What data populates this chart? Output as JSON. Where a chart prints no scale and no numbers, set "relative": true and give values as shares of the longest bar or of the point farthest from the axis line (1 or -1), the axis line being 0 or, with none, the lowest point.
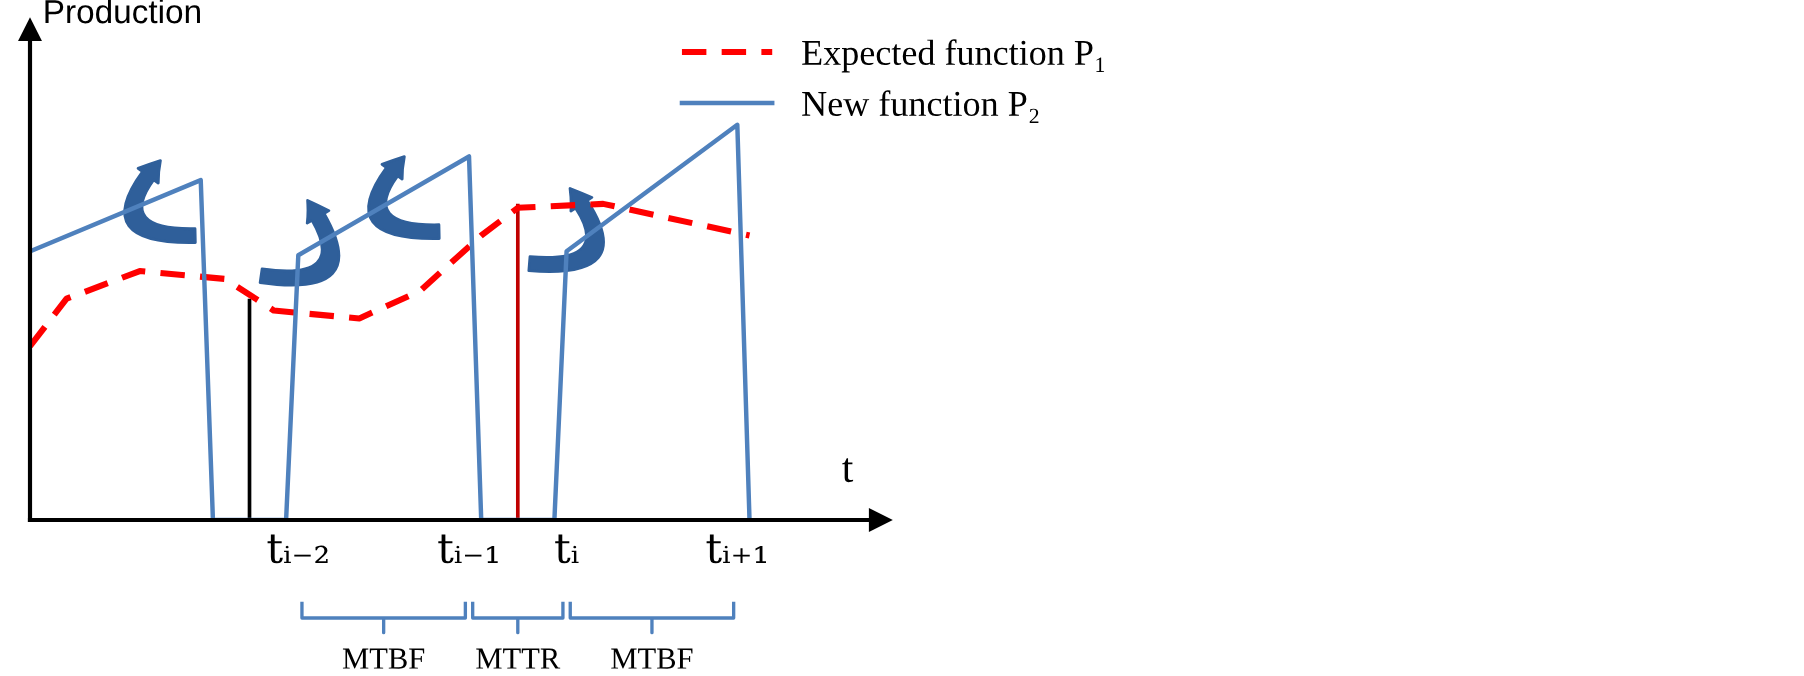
{
  "chart_data": {
    "type": "line",
    "relative": true,
    "ylabel": "Production",
    "xlabel": "t",
    "categories": [
      null,
      null,
      null,
      null,
      null,
      null,
      null,
      null,
      null,
      null,
      null,
      null,
      null,
      null,
      null,
      null,
      null,
      null,
      null,
      null,
      null,
      null,
      "tᵢ₋₂",
      null,
      null,
      null,
      null,
      null,
      null,
      null,
      null,
      null,
      null,
      null,
      null,
      null,
      "tᵢ₋₁",
      null,
      null,
      null,
      null,
      null,
      null,
      null,
      "tᵢ",
      null,
      null,
      null,
      null,
      null,
      null,
      null,
      null,
      null,
      null,
      null,
      null,
      null,
      "tᵢ₊₁",
      null,
      null,
      null,
      null,
      null,
      null,
      null,
      null,
      null,
      null,
      null
    ],
    "series": [
      {
        "name": "Expected function P₁",
        "color": "#ff0000",
        "line_style": "dashed",
        "values": [
          0.44,
          null,
          null,
          0.56,
          null,
          null,
          null,
          null,
          null,
          0.63,
          null,
          null,
          null,
          null,
          null,
          null,
          0.61,
          null,
          null,
          null,
          0.53,
          null,
          null,
          null,
          null,
          null,
          null,
          0.51,
          null,
          null,
          null,
          null,
          0.58,
          null,
          null,
          null,
          null,
          0.72,
          null,
          null,
          0.79,
          null,
          null,
          null,
          null,
          null,
          null,
          0.8,
          null,
          null,
          null,
          null,
          null,
          null,
          null,
          null,
          null,
          null,
          null,
          0.72,
          null,
          null,
          null,
          null,
          null,
          null,
          null,
          null,
          null,
          null
        ]
      },
      {
        "name": "New function P₂",
        "color": "#4f81bd",
        "line_style": "solid",
        "values": [
          0.68,
          null,
          null,
          null,
          null,
          null,
          null,
          null,
          null,
          null,
          null,
          null,
          null,
          null,
          0.86,
          0,
          null,
          null,
          null,
          null,
          null,
          0,
          0.67,
          null,
          null,
          null,
          null,
          null,
          null,
          null,
          null,
          null,
          null,
          null,
          null,
          null,
          0.92,
          0,
          null,
          null,
          null,
          null,
          null,
          0,
          0.68,
          null,
          null,
          null,
          null,
          null,
          null,
          null,
          null,
          null,
          null,
          null,
          null,
          null,
          1.0,
          0,
          null,
          null,
          null,
          null,
          null,
          null,
          null,
          null,
          null,
          null
        ]
      },
      {
        "type": "bar",
        "color": "#000000",
        "values": [
          null,
          null,
          null,
          null,
          null,
          null,
          null,
          null,
          null,
          null,
          null,
          null,
          null,
          null,
          null,
          null,
          null,
          null,
          0.56,
          null,
          null,
          null,
          null,
          null,
          null,
          null,
          null,
          null,
          null,
          null,
          null,
          null,
          null,
          null,
          null,
          null,
          null,
          null,
          null,
          null,
          null,
          null,
          null,
          null,
          null,
          null,
          null,
          null,
          null,
          null,
          null,
          null,
          null,
          null,
          null,
          null,
          null,
          null,
          null,
          null,
          null,
          null,
          null,
          null,
          null,
          null,
          null,
          null,
          null,
          null
        ]
      },
      {
        "type": "bar",
        "color": "#c00000",
        "values": [
          null,
          null,
          null,
          null,
          null,
          null,
          null,
          null,
          null,
          null,
          null,
          null,
          null,
          null,
          null,
          null,
          null,
          null,
          null,
          null,
          null,
          null,
          null,
          null,
          null,
          null,
          null,
          null,
          null,
          null,
          null,
          null,
          null,
          null,
          null,
          null,
          null,
          null,
          null,
          null,
          0.8,
          null,
          null,
          null,
          null,
          null,
          null,
          null,
          null,
          null,
          null,
          null,
          null,
          null,
          null,
          null,
          null,
          null,
          null,
          null,
          null,
          null,
          null,
          null,
          null,
          null,
          null,
          null,
          null,
          null
        ]
      }
    ],
    "legend": "top right",
    "annotations": [
      "MTBF",
      "MTTR",
      "MTBF"
    ]
  }
}
